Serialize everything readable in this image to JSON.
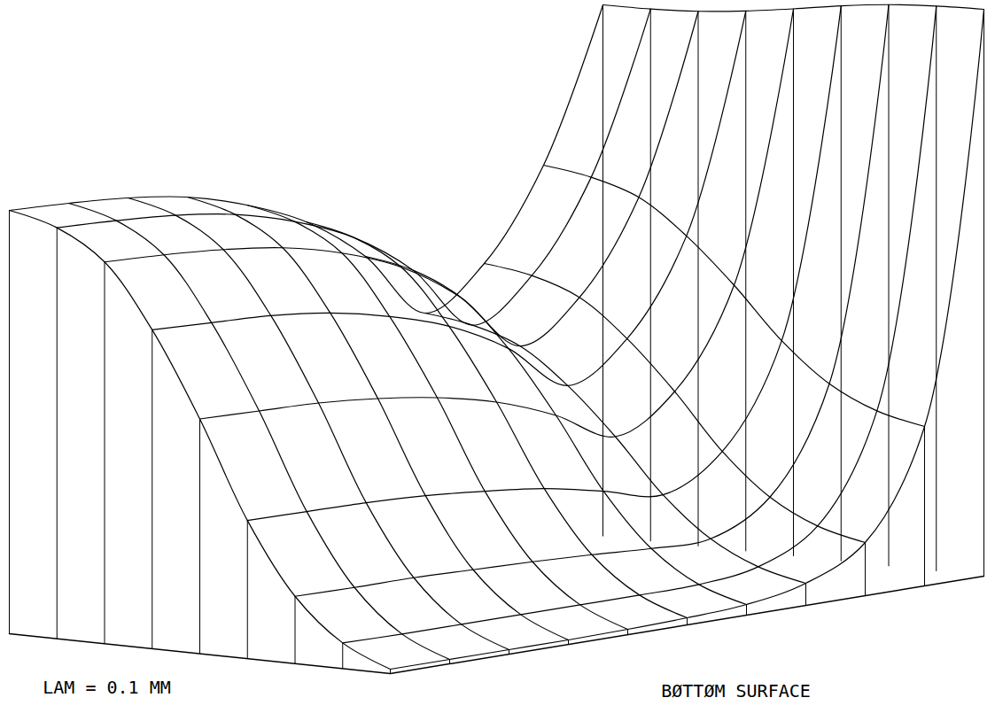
{
  "chart_data": {
    "type": "surface",
    "annotations": [
      "LAM = 0.1 MM",
      "BØTTØM SURFACE"
    ],
    "x": [
      0,
      0.125,
      0.25,
      0.375,
      0.5,
      0.625,
      0.75,
      0.875,
      1
    ],
    "y": [
      0,
      0.1,
      0.2,
      0.3,
      0.4,
      0.5,
      0.6,
      0.7,
      0.8,
      0.9,
      1
    ],
    "z": [
      [
        478,
        475,
        470,
        460,
        440,
        410,
        360,
        285,
        330,
        430,
        600
      ],
      [
        464,
        461,
        456,
        446,
        427,
        398,
        350,
        277,
        322,
        422,
        601
      ],
      [
        431,
        428,
        423,
        414,
        397,
        370,
        325,
        259,
        303,
        405,
        604
      ],
      [
        360,
        357,
        354,
        346,
        331,
        309,
        273,
        220,
        262,
        367,
        610
      ],
      [
        265,
        263,
        261,
        255,
        245,
        229,
        203,
        168,
        208,
        317,
        618
      ],
      [
        156,
        155,
        154,
        151,
        145,
        137,
        123,
        108,
        146,
        260,
        627
      ],
      [
        76,
        75,
        75,
        73,
        71,
        68,
        64,
        64,
        100,
        217,
        634
      ],
      [
        29,
        28,
        28,
        28,
        28,
        28,
        29,
        38,
        73,
        192,
        638
      ],
      [
        5,
        5,
        5,
        5,
        6,
        8,
        12,
        25,
        60,
        180,
        640
      ]
    ],
    "tick_labels": false
  }
}
